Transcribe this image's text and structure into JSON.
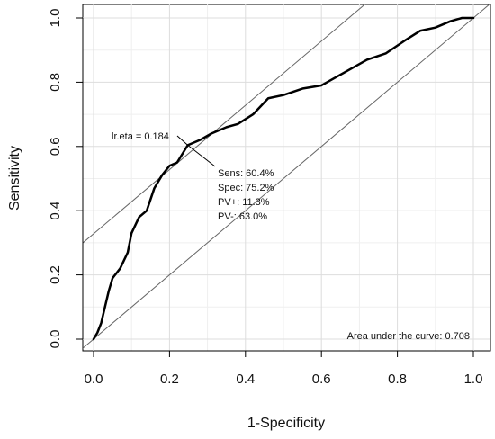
{
  "chart_data": {
    "type": "line",
    "title": "",
    "xlabel": "1-Specificity",
    "ylabel": "Sensitivity",
    "xlim": [
      0,
      1
    ],
    "ylim": [
      0,
      1
    ],
    "grid": true,
    "x_ticks": [
      "0.0",
      "0.2",
      "0.4",
      "0.6",
      "0.8",
      "1.0"
    ],
    "y_ticks": [
      "0.0",
      "0.2",
      "0.4",
      "0.6",
      "0.8",
      "1.0"
    ],
    "series": [
      {
        "values": [
          {
            "x": 0.0,
            "y": 0.0
          },
          {
            "x": 0.01,
            "y": 0.02
          },
          {
            "x": 0.02,
            "y": 0.05
          },
          {
            "x": 0.03,
            "y": 0.1
          },
          {
            "x": 0.04,
            "y": 0.15
          },
          {
            "x": 0.05,
            "y": 0.19
          },
          {
            "x": 0.07,
            "y": 0.22
          },
          {
            "x": 0.09,
            "y": 0.27
          },
          {
            "x": 0.1,
            "y": 0.33
          },
          {
            "x": 0.12,
            "y": 0.38
          },
          {
            "x": 0.14,
            "y": 0.4
          },
          {
            "x": 0.16,
            "y": 0.47
          },
          {
            "x": 0.18,
            "y": 0.51
          },
          {
            "x": 0.2,
            "y": 0.54
          },
          {
            "x": 0.22,
            "y": 0.55
          },
          {
            "x": 0.248,
            "y": 0.604
          },
          {
            "x": 0.28,
            "y": 0.62
          },
          {
            "x": 0.31,
            "y": 0.64
          },
          {
            "x": 0.35,
            "y": 0.66
          },
          {
            "x": 0.38,
            "y": 0.67
          },
          {
            "x": 0.42,
            "y": 0.7
          },
          {
            "x": 0.46,
            "y": 0.75
          },
          {
            "x": 0.5,
            "y": 0.76
          },
          {
            "x": 0.55,
            "y": 0.78
          },
          {
            "x": 0.6,
            "y": 0.79
          },
          {
            "x": 0.66,
            "y": 0.83
          },
          {
            "x": 0.72,
            "y": 0.87
          },
          {
            "x": 0.77,
            "y": 0.89
          },
          {
            "x": 0.82,
            "y": 0.93
          },
          {
            "x": 0.86,
            "y": 0.96
          },
          {
            "x": 0.9,
            "y": 0.97
          },
          {
            "x": 0.94,
            "y": 0.99
          },
          {
            "x": 0.97,
            "y": 1.0
          },
          {
            "x": 1.0,
            "y": 1.0
          }
        ]
      }
    ],
    "reference_lines": [
      {
        "type": "diagonal",
        "intercept": 0.0,
        "slope": 1.0
      },
      {
        "type": "parallel",
        "intercept": 0.328,
        "slope": 1.0
      }
    ],
    "marked_point": {
      "x": 0.248,
      "y": 0.604
    },
    "annotations": {
      "cutoff_label": "lr.eta = 0.184",
      "sens_label": "Sens: 60.4%",
      "spec_label": "Spec: 75.2%",
      "ppv_label": "PV+: 11.3%",
      "npv_label": "PV-: 63.0%",
      "auc_label": "Area under the curve: 0.708"
    }
  }
}
